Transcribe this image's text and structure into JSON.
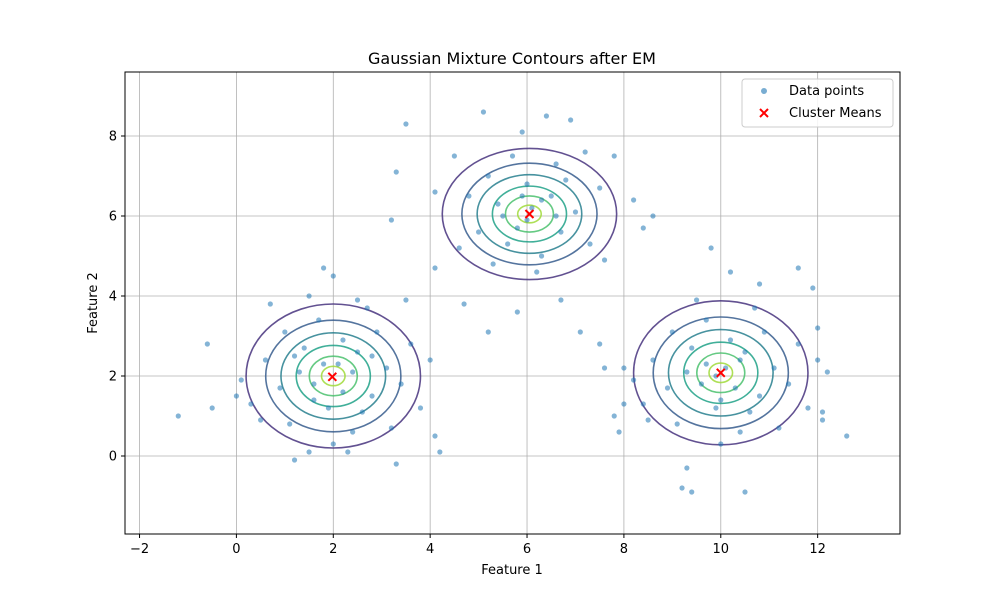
{
  "chart_data": {
    "type": "scatter",
    "title": "Gaussian Mixture Contours after EM",
    "xlabel": "Feature 1",
    "ylabel": "Feature 2",
    "xlim": [
      -2.3,
      13.7
    ],
    "ylim": [
      -1.95,
      9.6
    ],
    "xticks": [
      -2,
      0,
      2,
      4,
      6,
      8,
      10,
      12
    ],
    "yticks": [
      0,
      2,
      4,
      6,
      8
    ],
    "grid": true,
    "legend_position": "top-right",
    "legend": [
      "Data points",
      "Cluster Means"
    ],
    "colors": {
      "points": "#1f77b4",
      "means": "#ff0000",
      "contour_levels": [
        "#46337e",
        "#365c8d",
        "#277f8e",
        "#1fa187",
        "#4ac16d",
        "#a0da39"
      ]
    },
    "series": [
      {
        "name": "Data points",
        "points": [
          [
            2.1,
            2.3
          ],
          [
            1.6,
            1.8
          ],
          [
            2.5,
            2.6
          ],
          [
            1.3,
            2.1
          ],
          [
            2.8,
            1.5
          ],
          [
            1.9,
            1.2
          ],
          [
            2.2,
            2.9
          ],
          [
            0.9,
            1.7
          ],
          [
            3.1,
            2.2
          ],
          [
            1.4,
            2.7
          ],
          [
            2.6,
            1.1
          ],
          [
            1.1,
            0.8
          ],
          [
            2.9,
            3.1
          ],
          [
            0.6,
            2.4
          ],
          [
            3.4,
            1.8
          ],
          [
            1.7,
            3.4
          ],
          [
            2.4,
            0.6
          ],
          [
            0.3,
            1.3
          ],
          [
            3.6,
            2.8
          ],
          [
            1.0,
            3.1
          ],
          [
            2.0,
            0.3
          ],
          [
            3.2,
            0.7
          ],
          [
            0.5,
            0.9
          ],
          [
            3.8,
            1.2
          ],
          [
            1.5,
            4.0
          ],
          [
            2.7,
            3.7
          ],
          [
            0.1,
            1.9
          ],
          [
            4.0,
            2.4
          ],
          [
            -0.6,
            2.8
          ],
          [
            -1.2,
            1.0
          ],
          [
            -0.5,
            1.2
          ],
          [
            0.7,
            3.8
          ],
          [
            1.8,
            4.7
          ],
          [
            2.0,
            4.5
          ],
          [
            2.5,
            3.9
          ],
          [
            3.3,
            -0.2
          ],
          [
            1.5,
            0.1
          ],
          [
            1.2,
            -0.1
          ],
          [
            2.3,
            0.1
          ],
          [
            4.2,
            0.1
          ],
          [
            4.1,
            0.5
          ],
          [
            3.5,
            3.9
          ],
          [
            0.0,
            1.5
          ],
          [
            1.2,
            2.5
          ],
          [
            2.8,
            2.5
          ],
          [
            1.8,
            2.3
          ],
          [
            2.2,
            1.6
          ],
          [
            1.6,
            1.4
          ],
          [
            2.4,
            2.1
          ],
          [
            6.1,
            6.2
          ],
          [
            5.8,
            5.7
          ],
          [
            6.5,
            6.5
          ],
          [
            5.4,
            6.3
          ],
          [
            6.7,
            5.6
          ],
          [
            6.0,
            6.8
          ],
          [
            5.6,
            5.3
          ],
          [
            6.8,
            6.9
          ],
          [
            5.2,
            7.0
          ],
          [
            7.0,
            6.1
          ],
          [
            6.3,
            5.0
          ],
          [
            5.0,
            5.6
          ],
          [
            7.3,
            5.3
          ],
          [
            5.7,
            7.5
          ],
          [
            6.6,
            7.3
          ],
          [
            4.8,
            6.5
          ],
          [
            7.5,
            6.7
          ],
          [
            6.2,
            4.6
          ],
          [
            5.3,
            4.8
          ],
          [
            7.2,
            7.6
          ],
          [
            4.6,
            5.2
          ],
          [
            5.1,
            8.6
          ],
          [
            6.4,
            8.5
          ],
          [
            5.9,
            8.1
          ],
          [
            7.6,
            4.9
          ],
          [
            4.5,
            7.5
          ],
          [
            4.1,
            6.6
          ],
          [
            4.1,
            4.7
          ],
          [
            8.2,
            6.4
          ],
          [
            8.4,
            5.7
          ],
          [
            8.6,
            6.0
          ],
          [
            3.5,
            8.3
          ],
          [
            3.3,
            7.1
          ],
          [
            3.2,
            5.9
          ],
          [
            5.2,
            3.1
          ],
          [
            5.8,
            3.6
          ],
          [
            6.7,
            3.9
          ],
          [
            7.8,
            7.5
          ],
          [
            4.7,
            3.8
          ],
          [
            6.9,
            8.4
          ],
          [
            6.0,
            5.9
          ],
          [
            6.3,
            6.4
          ],
          [
            5.5,
            6.0
          ],
          [
            6.6,
            6.0
          ],
          [
            5.9,
            6.5
          ],
          [
            10.1,
            2.2
          ],
          [
            9.6,
            1.8
          ],
          [
            10.5,
            2.6
          ],
          [
            9.3,
            2.1
          ],
          [
            10.8,
            1.5
          ],
          [
            9.9,
            1.2
          ],
          [
            10.2,
            2.9
          ],
          [
            8.9,
            1.7
          ],
          [
            11.1,
            2.2
          ],
          [
            9.4,
            2.7
          ],
          [
            10.6,
            1.1
          ],
          [
            9.1,
            0.8
          ],
          [
            10.9,
            3.1
          ],
          [
            8.6,
            2.4
          ],
          [
            11.4,
            1.8
          ],
          [
            9.7,
            3.4
          ],
          [
            10.4,
            0.6
          ],
          [
            8.4,
            1.3
          ],
          [
            11.6,
            2.8
          ],
          [
            9.0,
            3.1
          ],
          [
            10.0,
            0.3
          ],
          [
            11.2,
            0.7
          ],
          [
            8.5,
            0.9
          ],
          [
            11.8,
            1.2
          ],
          [
            9.5,
            3.9
          ],
          [
            10.7,
            3.7
          ],
          [
            8.2,
            1.9
          ],
          [
            12.0,
            2.4
          ],
          [
            9.3,
            -0.3
          ],
          [
            9.2,
            -0.8
          ],
          [
            9.4,
            -0.9
          ],
          [
            10.5,
            -0.9
          ],
          [
            11.6,
            4.7
          ],
          [
            10.2,
            4.6
          ],
          [
            10.8,
            4.3
          ],
          [
            12.6,
            0.5
          ],
          [
            12.1,
            0.9
          ],
          [
            12.1,
            1.1
          ],
          [
            12.2,
            2.1
          ],
          [
            12.0,
            3.2
          ],
          [
            11.9,
            4.2
          ],
          [
            9.8,
            5.2
          ],
          [
            8.0,
            2.2
          ],
          [
            7.6,
            2.2
          ],
          [
            8.0,
            1.3
          ],
          [
            7.8,
            1.0
          ],
          [
            7.9,
            0.6
          ],
          [
            7.5,
            2.8
          ],
          [
            7.1,
            3.1
          ],
          [
            9.9,
            2.0
          ],
          [
            10.3,
            1.7
          ],
          [
            9.7,
            2.3
          ],
          [
            10.4,
            2.4
          ],
          [
            10.0,
            1.4
          ]
        ]
      },
      {
        "name": "Cluster Means",
        "points": [
          [
            1.98,
            1.98
          ],
          [
            6.05,
            6.05
          ],
          [
            10.0,
            2.08
          ]
        ]
      }
    ],
    "components": [
      {
        "mean": [
          2.0,
          2.0
        ],
        "std": [
          0.9,
          0.9
        ]
      },
      {
        "mean": [
          6.05,
          6.05
        ],
        "std": [
          0.9,
          0.82
        ]
      },
      {
        "mean": [
          10.0,
          2.08
        ],
        "std": [
          0.9,
          0.9
        ]
      }
    ],
    "contour_radii": [
      2.0,
      1.55,
      1.2,
      0.85,
      0.55,
      0.27
    ]
  }
}
